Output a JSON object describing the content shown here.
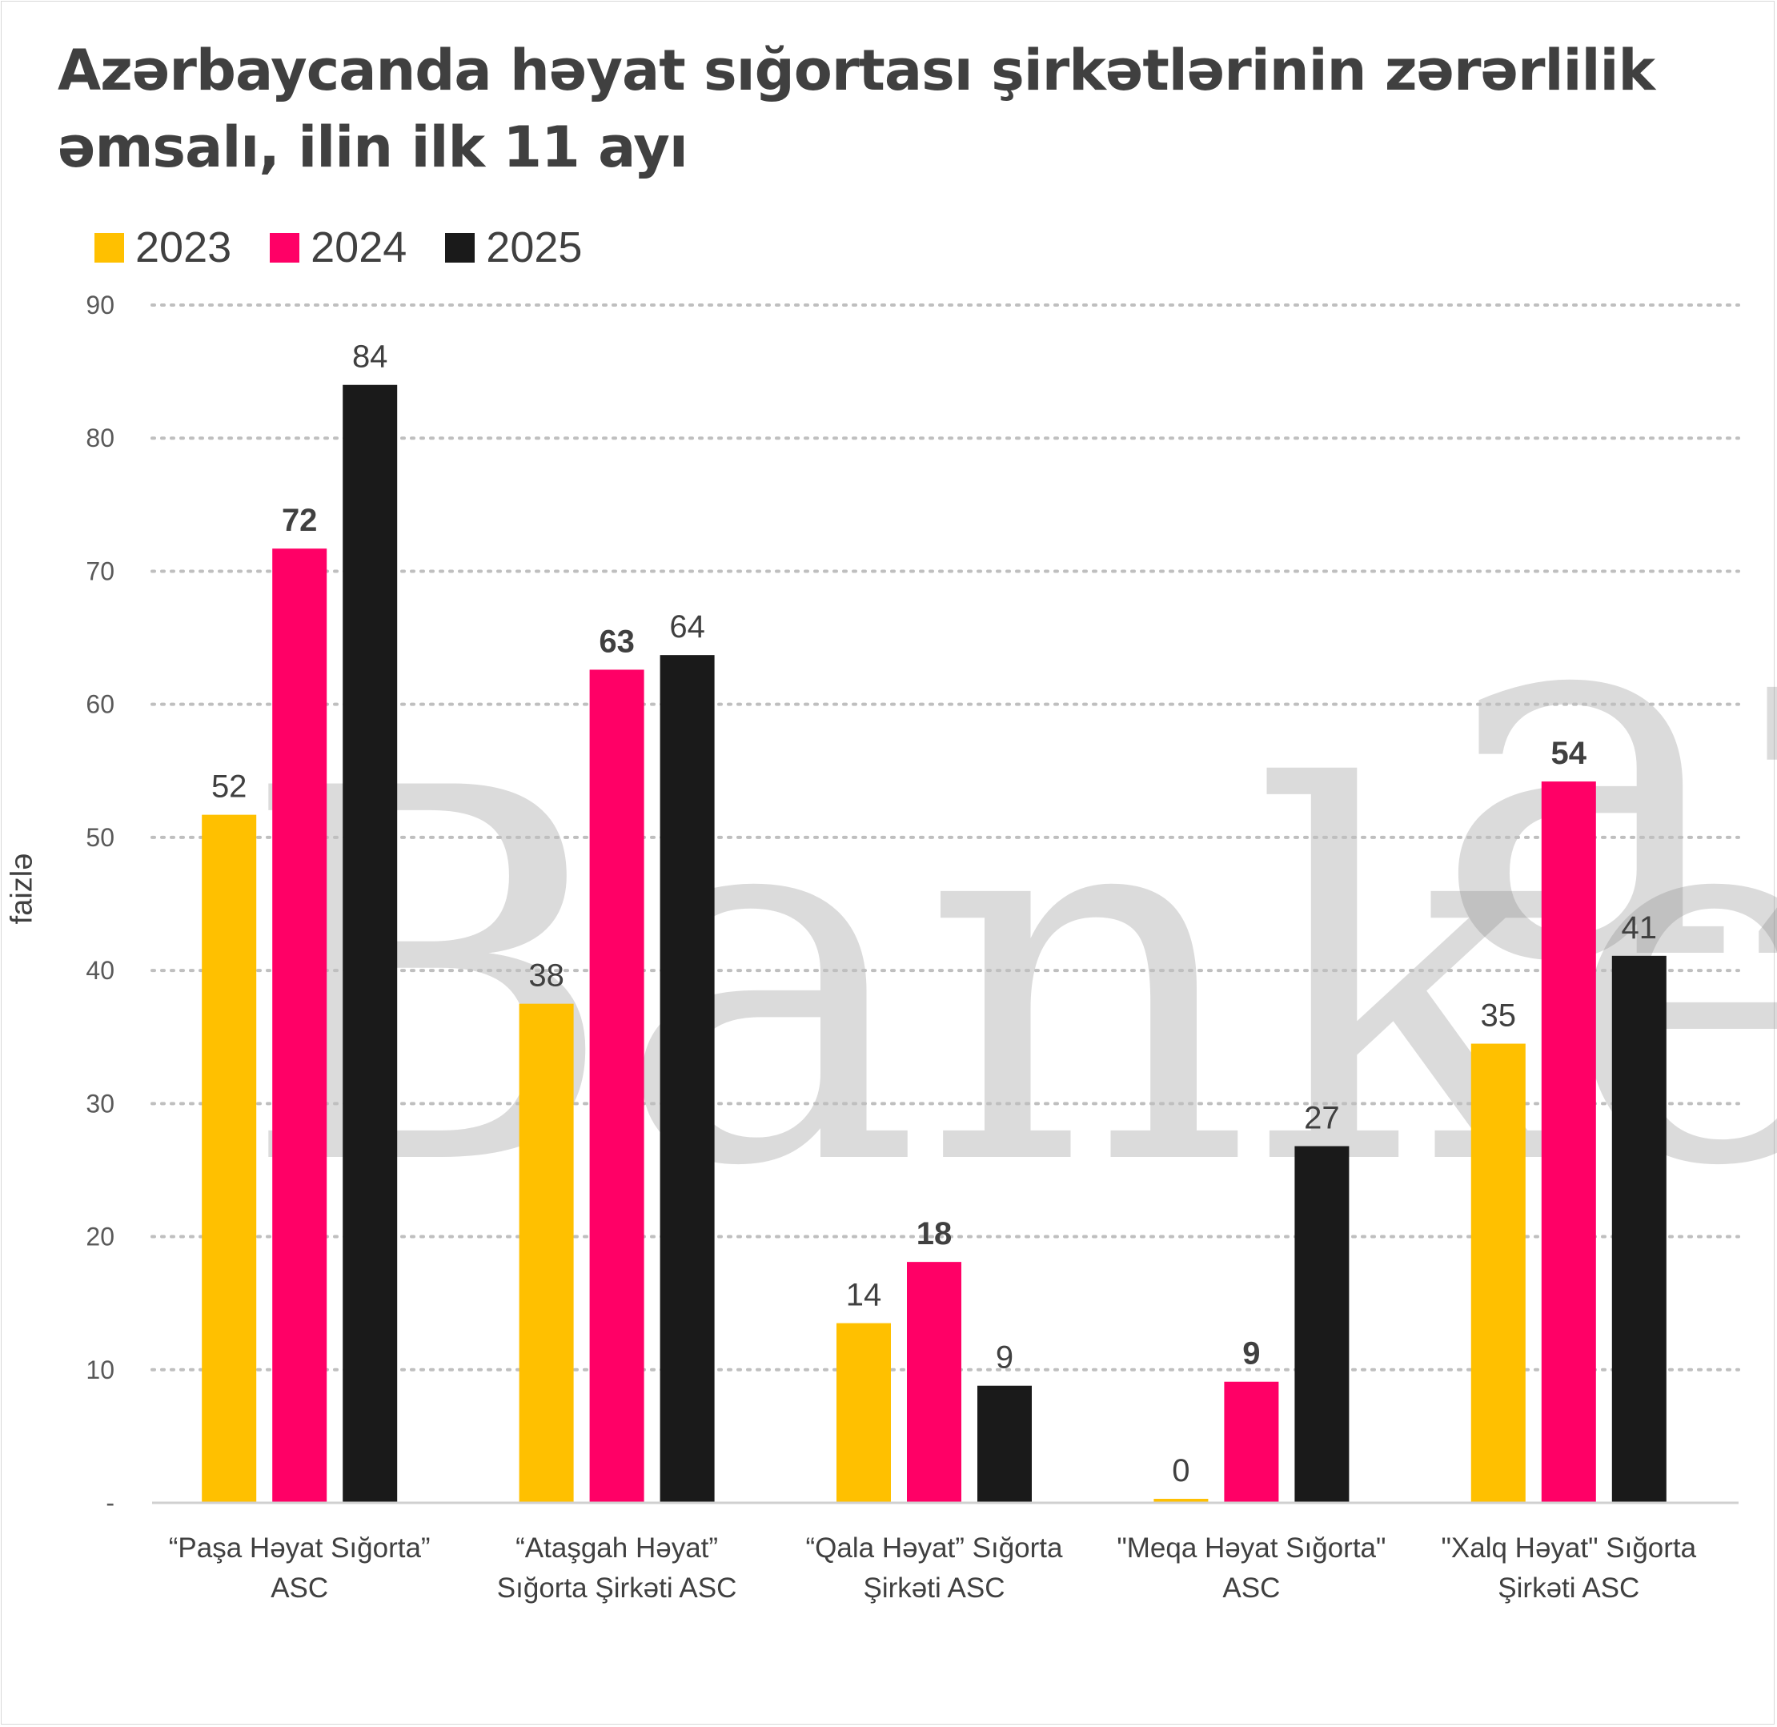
{
  "title": "Azərbaycanda həyat sığortası şirkətlərinin zərərlilik əmsalı, ilin ilk 11 ayı",
  "watermark": {
    "main": "Banker",
    "sup": "az"
  },
  "chart_data": {
    "type": "bar",
    "title": "Azərbaycanda həyat sığortası şirkətlərinin zərərlilik əmsalı, ilin ilk 11 ayı",
    "ylabel": "faizlə",
    "xlabel": "",
    "ylim": [
      0,
      90
    ],
    "yticks": [
      {
        "value": 0,
        "label": "-"
      },
      {
        "value": 10,
        "label": "10"
      },
      {
        "value": 20,
        "label": "20"
      },
      {
        "value": 30,
        "label": "30"
      },
      {
        "value": 40,
        "label": "40"
      },
      {
        "value": 50,
        "label": "50"
      },
      {
        "value": 60,
        "label": "60"
      },
      {
        "value": 70,
        "label": "70"
      },
      {
        "value": 80,
        "label": "80"
      },
      {
        "value": 90,
        "label": "90"
      }
    ],
    "grid": true,
    "legend_position": "top-left",
    "categories": [
      [
        "“Paşa Həyat Sığorta”",
        "ASC"
      ],
      [
        "“Ataşgah Həyat”",
        "Sığorta Şirkəti ASC"
      ],
      [
        "“Qala Həyat” Sığorta",
        "Şirkəti ASC"
      ],
      [
        "\"Meqa Həyat Sığorta\"",
        "ASC"
      ],
      [
        "\"Xalq Həyat\" Sığorta",
        "Şirkəti ASC"
      ]
    ],
    "series": [
      {
        "name": "2023",
        "color": "#FFC000",
        "values": [
          51.7,
          37.5,
          13.5,
          0.3,
          34.5
        ],
        "labels": [
          "52",
          "38",
          "14",
          "0",
          "35"
        ],
        "bold_labels": false
      },
      {
        "name": "2024",
        "color": "#FF0066",
        "values": [
          71.7,
          62.6,
          18.1,
          9.1,
          54.2
        ],
        "labels": [
          "72",
          "63",
          "18",
          "9",
          "54"
        ],
        "bold_labels": true
      },
      {
        "name": "2025",
        "color": "#1A1A1A",
        "values": [
          84.0,
          63.7,
          8.8,
          26.8,
          41.1
        ],
        "labels": [
          "84",
          "64",
          "9",
          "27",
          "41"
        ],
        "bold_labels": false
      }
    ]
  }
}
